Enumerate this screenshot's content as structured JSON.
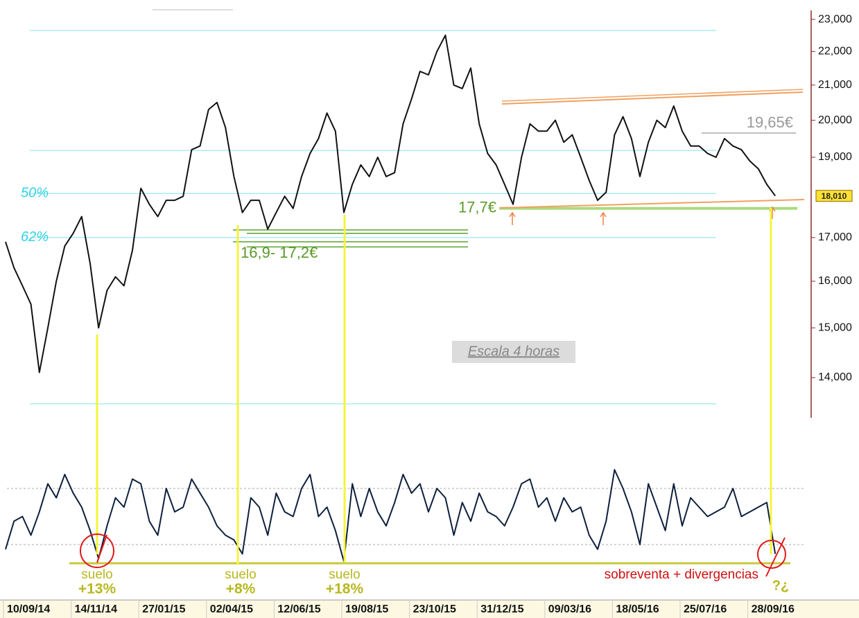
{
  "chart_data": [
    {
      "type": "line",
      "values": [
        16900,
        16300,
        15900,
        15500,
        14100,
        15000,
        16000,
        16800,
        17100,
        17500,
        16400,
        15000,
        15800,
        16100,
        15900,
        16700,
        18200,
        17800,
        17500,
        17900,
        17900,
        18000,
        19200,
        19300,
        20300,
        20500,
        19800,
        18500,
        17600,
        17900,
        17900,
        17200,
        17600,
        18000,
        17700,
        18500,
        19100,
        19500,
        20200,
        19700,
        17600,
        18300,
        18800,
        18500,
        19000,
        18500,
        18600,
        19900,
        20600,
        21400,
        21300,
        22000,
        22500,
        21000,
        20900,
        21500,
        19900,
        19100,
        18800,
        18300,
        17800,
        19000,
        19900,
        19700,
        19700,
        20000,
        19400,
        19600,
        19000,
        18400,
        17900,
        18100,
        19600,
        20100,
        19500,
        18500,
        19400,
        20000,
        19800,
        20400,
        19700,
        19300,
        19300,
        19100,
        19000,
        19500,
        19300,
        19200,
        18900,
        18700,
        18300,
        18010
      ],
      "color": "#111111",
      "log": true,
      "ylim": [
        13280,
        23290
      ],
      "yticks": [
        {
          "value": 23000,
          "label": "23,000"
        },
        {
          "value": 22000,
          "label": "22,000"
        },
        {
          "value": 21000,
          "label": "21,000"
        },
        {
          "value": 20000,
          "label": "20,000"
        },
        {
          "value": 19000,
          "label": "19,000"
        },
        {
          "value": 17000,
          "label": "17,000"
        },
        {
          "value": 16000,
          "label": "16,000"
        },
        {
          "value": 15000,
          "label": "15,000"
        },
        {
          "value": 14000,
          "label": "14,000"
        }
      ],
      "hlines": [
        22650,
        19180,
        {
          "value": 18070,
          "label": "50%"
        },
        {
          "value": 17000,
          "label": "62%"
        },
        13500
      ],
      "support_levels": [
        17180,
        17100,
        16900,
        16780
      ],
      "support_label": "16,9- 17,2€",
      "floor": {
        "value": 17700,
        "label": "17,7€"
      },
      "resistance": {
        "value": 19650,
        "label": "19,65€"
      },
      "last_price": {
        "value": 18010,
        "label": "18,010"
      },
      "note": "Escala 4 horas"
    },
    {
      "type": "line",
      "categories": [
        "10/09/14",
        null,
        null,
        null,
        null,
        null,
        null,
        null,
        "14/11/14",
        null,
        null,
        null,
        null,
        null,
        null,
        null,
        "27/01/15",
        null,
        null,
        null,
        null,
        null,
        null,
        null,
        "02/04/15",
        null,
        null,
        null,
        null,
        null,
        null,
        null,
        "12/06/15",
        null,
        null,
        null,
        null,
        null,
        null,
        null,
        "19/08/15",
        null,
        null,
        null,
        null,
        null,
        null,
        null,
        "23/10/15",
        null,
        null,
        null,
        null,
        null,
        null,
        null,
        "31/12/15",
        null,
        null,
        null,
        null,
        null,
        null,
        null,
        "09/03/16",
        null,
        null,
        null,
        null,
        null,
        null,
        null,
        "18/05/16",
        null,
        null,
        null,
        null,
        null,
        null,
        null,
        "25/07/16",
        null,
        null,
        null,
        null,
        null,
        null,
        null,
        "28/09/16",
        null,
        null,
        null
      ],
      "values": [
        15,
        45,
        50,
        30,
        55,
        85,
        70,
        95,
        75,
        60,
        35,
        5,
        40,
        70,
        60,
        90,
        85,
        45,
        30,
        80,
        55,
        60,
        90,
        75,
        60,
        40,
        30,
        25,
        10,
        70,
        60,
        30,
        75,
        55,
        50,
        80,
        95,
        50,
        60,
        35,
        2,
        85,
        50,
        80,
        55,
        40,
        65,
        95,
        75,
        85,
        55,
        80,
        70,
        30,
        65,
        45,
        75,
        55,
        50,
        40,
        60,
        85,
        90,
        60,
        70,
        45,
        70,
        55,
        60,
        30,
        15,
        45,
        100,
        80,
        55,
        20,
        85,
        60,
        35,
        85,
        40,
        70,
        60,
        50,
        55,
        60,
        80,
        50,
        55,
        60,
        65,
        10
      ],
      "color": "#0d1f3c",
      "ylim": [
        -10,
        110
      ],
      "guides": [
        80,
        20
      ],
      "baseline": 0,
      "annotations": [
        {
          "text": "suelo",
          "gain": "+13%"
        },
        {
          "text": "suelo",
          "gain": "+8%"
        },
        {
          "text": "suelo",
          "gain": "+18%"
        }
      ],
      "warning": "sobreventa + divergencias",
      "question": "?¿"
    }
  ]
}
